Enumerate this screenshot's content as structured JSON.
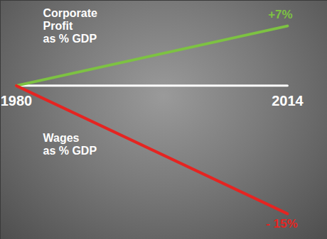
{
  "chart_data": {
    "type": "line",
    "x": [
      1980,
      2014
    ],
    "xlim": [
      1978,
      2019
    ],
    "xticks": [
      1980,
      2014
    ],
    "ylim": [
      -18,
      10
    ],
    "tick_labels": "x",
    "grid": false,
    "data_labels": true,
    "series": [
      {
        "name": "Corporate Profit as % GDP",
        "color": "#7dc242",
        "values": [
          0,
          7
        ],
        "value_labels": [
          null,
          "+7%"
        ]
      },
      {
        "name": "Wages as % GDP",
        "color": "#e52421",
        "values": [
          0,
          -15
        ],
        "value_labels": [
          null,
          "- 15%"
        ]
      }
    ]
  }
}
